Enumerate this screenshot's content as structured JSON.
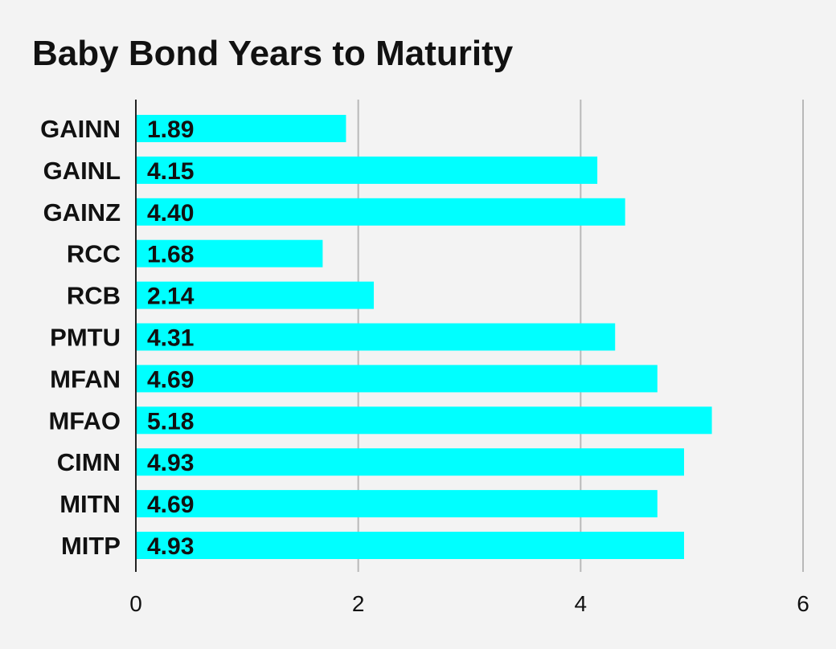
{
  "chart_data": {
    "type": "bar",
    "orientation": "horizontal",
    "title": "Baby Bond Years to Maturity",
    "categories": [
      "GAINN",
      "GAINL",
      "GAINZ",
      "RCC",
      "RCB",
      "PMTU",
      "MFAN",
      "MFAO",
      "CIMN",
      "MITN",
      "MITP"
    ],
    "values": [
      1.89,
      4.15,
      4.4,
      1.68,
      2.14,
      4.31,
      4.69,
      5.18,
      4.93,
      4.69,
      4.93
    ],
    "value_labels": [
      "1.89",
      "4.15",
      "4.40",
      "1.68",
      "2.14",
      "4.31",
      "4.69",
      "5.18",
      "4.93",
      "4.69",
      "4.93"
    ],
    "xlim": [
      0,
      6
    ],
    "xticks": [
      0,
      2,
      4,
      6
    ],
    "xtick_labels": [
      "0",
      "2",
      "4",
      "6"
    ],
    "grid": true,
    "bar_color": "#00ffff",
    "grid_color": "#b8b8b8",
    "axis_color": "#222222",
    "background": "#f3f3f3"
  }
}
